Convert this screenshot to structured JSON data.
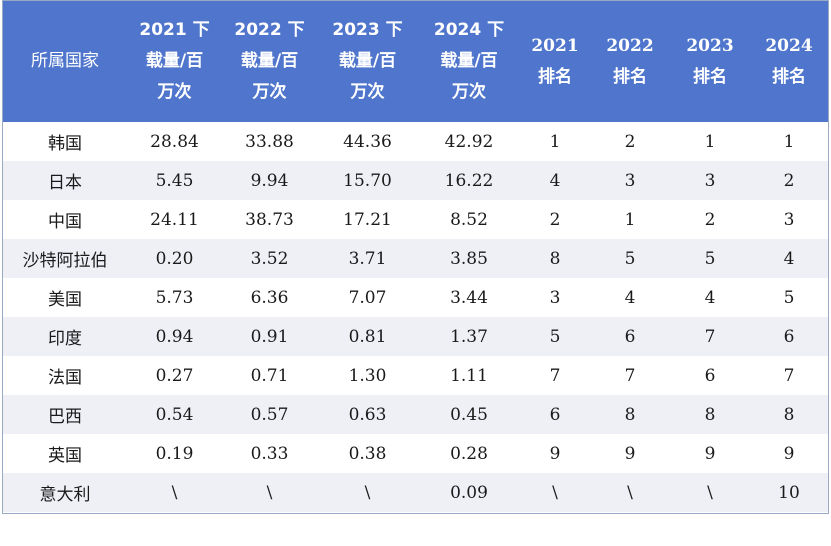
{
  "headers": [
    "所属国家",
    "2021 下\n载量/百\n万次",
    "2022 下\n载量/百\n万次",
    "2023 下\n载量/百\n万次",
    "2024 下\n载量/百\n万次",
    "2021\n排名",
    "2022\n排名",
    "2023\n排名",
    "2024\n排名"
  ],
  "rows": [
    [
      "韩国",
      "28.84",
      "33.88",
      "44.36",
      "42.92",
      "1",
      "2",
      "1",
      "1"
    ],
    [
      "日本",
      "5.45",
      "9.94",
      "15.70",
      "16.22",
      "4",
      "3",
      "3",
      "2"
    ],
    [
      "中国",
      "24.11",
      "38.73",
      "17.21",
      "8.52",
      "2",
      "1",
      "2",
      "3"
    ],
    [
      "沙特阿拉伯",
      "0.20",
      "3.52",
      "3.71",
      "3.85",
      "8",
      "5",
      "5",
      "4"
    ],
    [
      "美国",
      "5.73",
      "6.36",
      "7.07",
      "3.44",
      "3",
      "4",
      "4",
      "5"
    ],
    [
      "印度",
      "0.94",
      "0.91",
      "0.81",
      "1.37",
      "5",
      "6",
      "7",
      "6"
    ],
    [
      "法国",
      "0.27",
      "0.71",
      "1.30",
      "1.11",
      "7",
      "7",
      "6",
      "7"
    ],
    [
      "巴西",
      "0.54",
      "0.57",
      "0.63",
      "0.45",
      "6",
      "8",
      "8",
      "8"
    ],
    [
      "英国",
      "0.19",
      "0.33",
      "0.38",
      "0.28",
      "9",
      "9",
      "9",
      "9"
    ],
    [
      "意大利",
      "\\",
      "\\",
      "\\",
      "0.09",
      "\\",
      "\\",
      "\\",
      "10"
    ]
  ],
  "colors": {
    "header_bg": "#4f76cc",
    "header_text": "#ffffff",
    "stripe": "#eef0f6"
  }
}
